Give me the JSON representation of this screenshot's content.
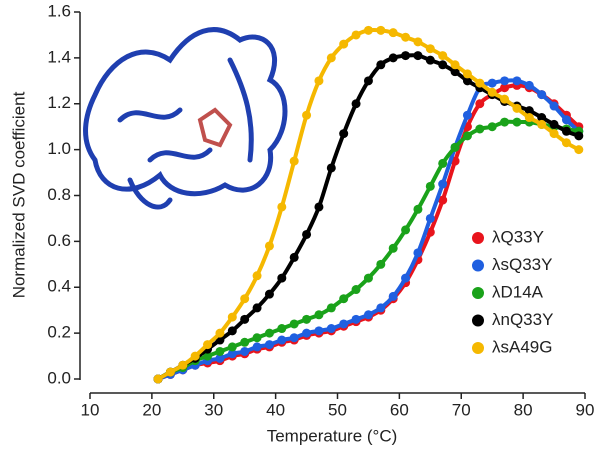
{
  "chart_data": {
    "type": "scatter",
    "x_label": "Temperature (°C)",
    "y_label": "Normalized SVD coefficient",
    "x": [
      21,
      23,
      25,
      27,
      29,
      31,
      33,
      35,
      37,
      39,
      41,
      43,
      45,
      47,
      49,
      51,
      53,
      55,
      57,
      59,
      61,
      63,
      65,
      67,
      69,
      71,
      73,
      75,
      77,
      79,
      81,
      83,
      85,
      87,
      89
    ],
    "series": [
      {
        "name": "λQ33Y",
        "color": "#e8141c",
        "values": [
          0.0,
          0.02,
          0.04,
          0.06,
          0.07,
          0.08,
          0.1,
          0.11,
          0.13,
          0.14,
          0.16,
          0.17,
          0.19,
          0.2,
          0.21,
          0.23,
          0.25,
          0.27,
          0.3,
          0.35,
          0.42,
          0.52,
          0.64,
          0.78,
          0.95,
          1.1,
          1.2,
          1.24,
          1.27,
          1.28,
          1.27,
          1.24,
          1.2,
          1.15,
          1.1
        ]
      },
      {
        "name": "λsQ33Y",
        "color": "#1f5fe0",
        "values": [
          0.0,
          0.02,
          0.04,
          0.06,
          0.08,
          0.09,
          0.11,
          0.12,
          0.14,
          0.15,
          0.17,
          0.18,
          0.2,
          0.21,
          0.22,
          0.24,
          0.26,
          0.28,
          0.31,
          0.36,
          0.44,
          0.55,
          0.7,
          0.85,
          1.01,
          1.15,
          1.27,
          1.29,
          1.3,
          1.3,
          1.28,
          1.24,
          1.19,
          1.13,
          1.08
        ]
      },
      {
        "name": "λD14A",
        "color": "#1aa21a",
        "values": [
          0.0,
          0.03,
          0.05,
          0.08,
          0.1,
          0.12,
          0.14,
          0.16,
          0.18,
          0.2,
          0.22,
          0.24,
          0.26,
          0.28,
          0.31,
          0.35,
          0.39,
          0.44,
          0.5,
          0.57,
          0.65,
          0.74,
          0.84,
          0.94,
          1.01,
          1.06,
          1.09,
          1.1,
          1.12,
          1.12,
          1.12,
          1.11,
          1.1,
          1.09,
          1.08
        ]
      },
      {
        "name": "λnQ33Y",
        "color": "#000000",
        "values": [
          0.0,
          0.03,
          0.06,
          0.09,
          0.13,
          0.17,
          0.21,
          0.26,
          0.31,
          0.37,
          0.44,
          0.53,
          0.63,
          0.75,
          0.92,
          1.07,
          1.2,
          1.3,
          1.37,
          1.4,
          1.41,
          1.41,
          1.39,
          1.37,
          1.34,
          1.3,
          1.27,
          1.24,
          1.21,
          1.19,
          1.17,
          1.14,
          1.11,
          1.08,
          1.06
        ]
      },
      {
        "name": "λsA49G",
        "color": "#f5b800",
        "values": [
          0.0,
          0.03,
          0.06,
          0.1,
          0.15,
          0.2,
          0.27,
          0.35,
          0.45,
          0.58,
          0.75,
          0.95,
          1.15,
          1.3,
          1.4,
          1.46,
          1.5,
          1.52,
          1.52,
          1.51,
          1.49,
          1.47,
          1.44,
          1.41,
          1.37,
          1.33,
          1.29,
          1.25,
          1.22,
          1.18,
          1.14,
          1.11,
          1.07,
          1.03,
          1.0
        ]
      }
    ],
    "xlim": [
      10,
      90
    ],
    "xticks": [
      10,
      20,
      30,
      40,
      50,
      60,
      70,
      80,
      90
    ],
    "ylim": [
      0,
      1.6
    ],
    "yticks": [
      {
        "value": 0,
        "label": "0.0"
      },
      0.2,
      0.4,
      0.6,
      0.8,
      {
        "value": 1,
        "label": "1.0"
      },
      1.2,
      1.4,
      1.6
    ],
    "legend": "right"
  }
}
